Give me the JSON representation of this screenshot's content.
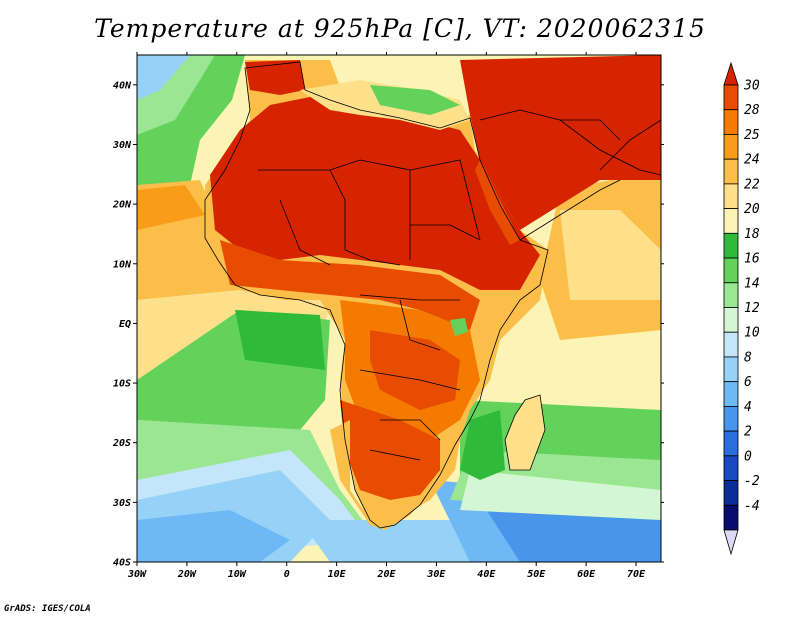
{
  "title": "Temperature at 925hPa [C], VT: 2020062315",
  "credit": "GrADS: IGES/COLA",
  "map": {
    "lon_range": [
      -30,
      75
    ],
    "lat_range": [
      -40,
      45
    ],
    "lon_ticks": [
      {
        "value": -30,
        "label": "30W"
      },
      {
        "value": -20,
        "label": "20W"
      },
      {
        "value": -10,
        "label": "10W"
      },
      {
        "value": 0,
        "label": "0"
      },
      {
        "value": 10,
        "label": "10E"
      },
      {
        "value": 20,
        "label": "20E"
      },
      {
        "value": 30,
        "label": "30E"
      },
      {
        "value": 40,
        "label": "40E"
      },
      {
        "value": 50,
        "label": "50E"
      },
      {
        "value": 60,
        "label": "60E"
      },
      {
        "value": 70,
        "label": "70E"
      }
    ],
    "lat_ticks": [
      {
        "value": 40,
        "label": "40N"
      },
      {
        "value": 30,
        "label": "30N"
      },
      {
        "value": 20,
        "label": "20N"
      },
      {
        "value": 10,
        "label": "10N"
      },
      {
        "value": 0,
        "label": "EQ"
      },
      {
        "value": -10,
        "label": "10S"
      },
      {
        "value": -20,
        "label": "20S"
      },
      {
        "value": -30,
        "label": "30S"
      },
      {
        "value": -40,
        "label": "40S"
      }
    ]
  },
  "colorbar": {
    "labels": [
      "30",
      "28",
      "25",
      "24",
      "22",
      "20",
      "18",
      "16",
      "14",
      "12",
      "10",
      "8",
      "6",
      "4",
      "2",
      "0",
      "-2",
      "-4"
    ],
    "colors": [
      "#d72400",
      "#e84c00",
      "#f47a00",
      "#f99c18",
      "#fbbe48",
      "#fde089",
      "#fbf4b4",
      "#2fba3a",
      "#62d25a",
      "#9ae692",
      "#d4f6d4",
      "#c4e6fa",
      "#96d2f8",
      "#6eb8f6",
      "#4896ec",
      "#2a6ede",
      "#1848c2",
      "#0c2c96",
      "#080c6e"
    ],
    "end_color": "#ddd8f4"
  }
}
